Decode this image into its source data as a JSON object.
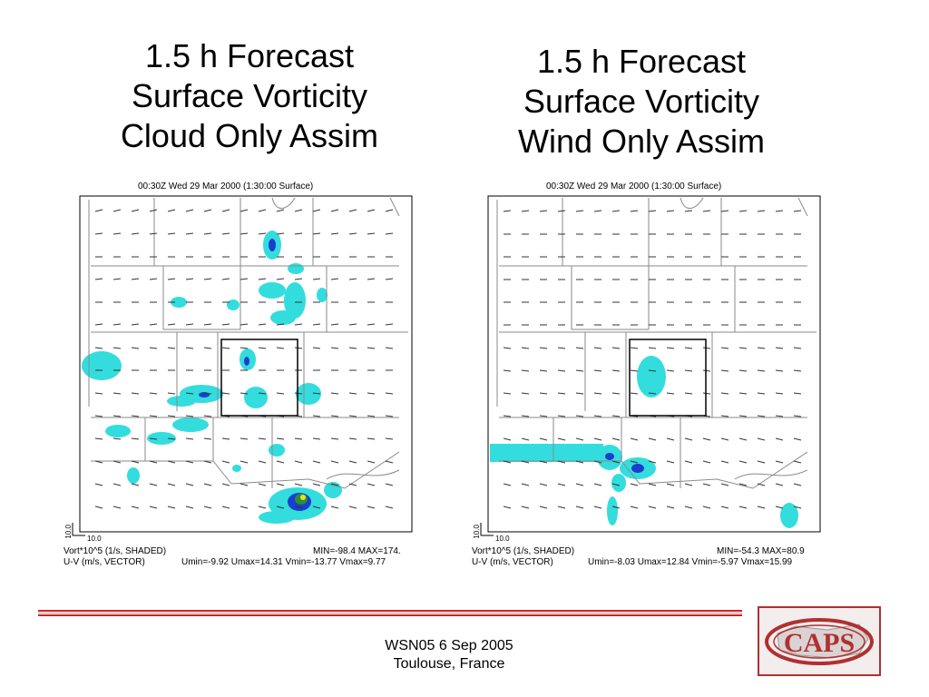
{
  "titles": {
    "left": [
      "1.5 h Forecast",
      "Surface Vorticity",
      "Cloud Only Assim"
    ],
    "right": [
      "1.5 h Forecast",
      "Surface Vorticity",
      "Wind Only Assim"
    ]
  },
  "panels": {
    "left": {
      "header": "00:30Z Wed 29 Mar 2000 (1:30:00 Surface)",
      "scale_vertical": "10.0",
      "scale_horizontal": "10.0",
      "field1_label": "Vort*10^5 (1/s, SHADED)",
      "field2_label": "U-V (m/s, VECTOR)",
      "minmax": "MIN=-98.4 MAX=174.",
      "uv_stats": "Umin=-9.92 Umax=14.31 Vmin=-13.77 Vmax=9.77"
    },
    "right": {
      "header": "00:30Z Wed 29 Mar 2000 (1:30:00 Surface)",
      "scale_vertical": "10.0",
      "scale_horizontal": "10.0",
      "field1_label": "Vort*10^5 (1/s, SHADED)",
      "field2_label": "U-V (m/s, VECTOR)",
      "minmax": "MIN=-54.3 MAX=80.9",
      "uv_stats": "Umin=-8.03 Umax=12.84 Vmin=-5.97 Vmax=15.99"
    }
  },
  "footer": {
    "line1": "WSN05 6 Sep 2005",
    "line2": "Toulouse, France"
  },
  "logo": {
    "text": "CAPS",
    "icon": "caps-logo"
  },
  "colors": {
    "shade_light": "#33dddd",
    "shade_dark": "#1a3fd0",
    "shade_peak": "#2f8f2f",
    "accent_rule": "#cc2222"
  }
}
